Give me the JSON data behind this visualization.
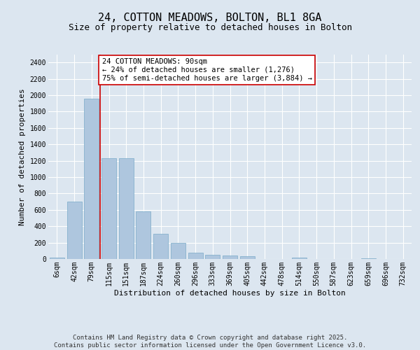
{
  "title_line1": "24, COTTON MEADOWS, BOLTON, BL1 8GA",
  "title_line2": "Size of property relative to detached houses in Bolton",
  "xlabel": "Distribution of detached houses by size in Bolton",
  "ylabel": "Number of detached properties",
  "categories": [
    "6sqm",
    "42sqm",
    "79sqm",
    "115sqm",
    "151sqm",
    "187sqm",
    "224sqm",
    "260sqm",
    "296sqm",
    "333sqm",
    "369sqm",
    "405sqm",
    "442sqm",
    "478sqm",
    "514sqm",
    "550sqm",
    "587sqm",
    "623sqm",
    "659sqm",
    "696sqm",
    "732sqm"
  ],
  "values": [
    15,
    700,
    1960,
    1235,
    1235,
    580,
    305,
    200,
    80,
    50,
    42,
    35,
    0,
    0,
    15,
    0,
    0,
    0,
    5,
    0,
    0
  ],
  "bar_color": "#aec6de",
  "bar_edge_color": "#7aaac8",
  "vline_x": 2.5,
  "vline_color": "#cc0000",
  "annotation_text": "24 COTTON MEADOWS: 90sqm\n← 24% of detached houses are smaller (1,276)\n75% of semi-detached houses are larger (3,884) →",
  "annotation_box_color": "#ffffff",
  "annotation_box_edge": "#cc0000",
  "ylim": [
    0,
    2500
  ],
  "yticks": [
    0,
    200,
    400,
    600,
    800,
    1000,
    1200,
    1400,
    1600,
    1800,
    2000,
    2200,
    2400
  ],
  "bg_color": "#dce6f0",
  "plot_bg_color": "#dce6f0",
  "footer_text": "Contains HM Land Registry data © Crown copyright and database right 2025.\nContains public sector information licensed under the Open Government Licence v3.0.",
  "title_fontsize": 11,
  "subtitle_fontsize": 9,
  "axis_label_fontsize": 8,
  "tick_fontsize": 7,
  "annotation_fontsize": 7.5,
  "footer_fontsize": 6.5
}
